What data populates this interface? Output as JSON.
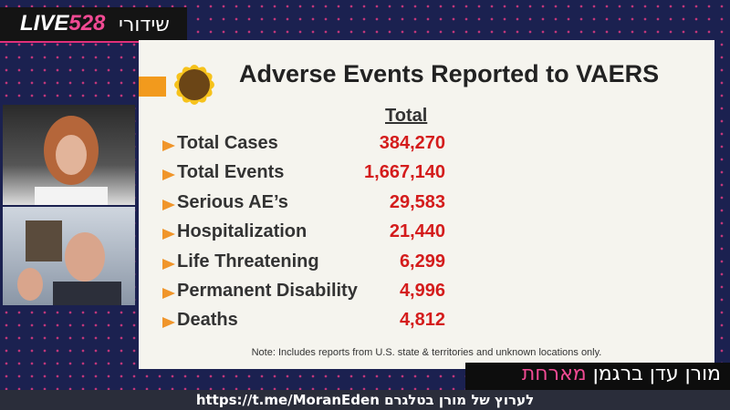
{
  "logo": {
    "live": "LIVE",
    "number": "528",
    "hebrew": "שידורי"
  },
  "slide": {
    "title": "Adverse Events Reported to VAERS",
    "column_header": "Total",
    "rows": [
      {
        "label": "Total Cases",
        "value": "384,270"
      },
      {
        "label": "Total Events",
        "value": "1,667,140"
      },
      {
        "label": "Serious AE’s",
        "value": "29,583"
      },
      {
        "label": "Hospitalization",
        "value": "21,440"
      },
      {
        "label": "Life Threatening",
        "value": "6,299"
      },
      {
        "label": "Permanent Disability",
        "value": "4,996"
      },
      {
        "label": "Deaths",
        "value": "4,812"
      }
    ],
    "note": "Note: Includes reports from U.S. state & territories and unknown locations only."
  },
  "banner": {
    "name": "מורן עדן ברגמן",
    "role": "מארחת"
  },
  "ticker": "https://t.me/MoranEden לערוץ של מורן בטלגרם"
}
